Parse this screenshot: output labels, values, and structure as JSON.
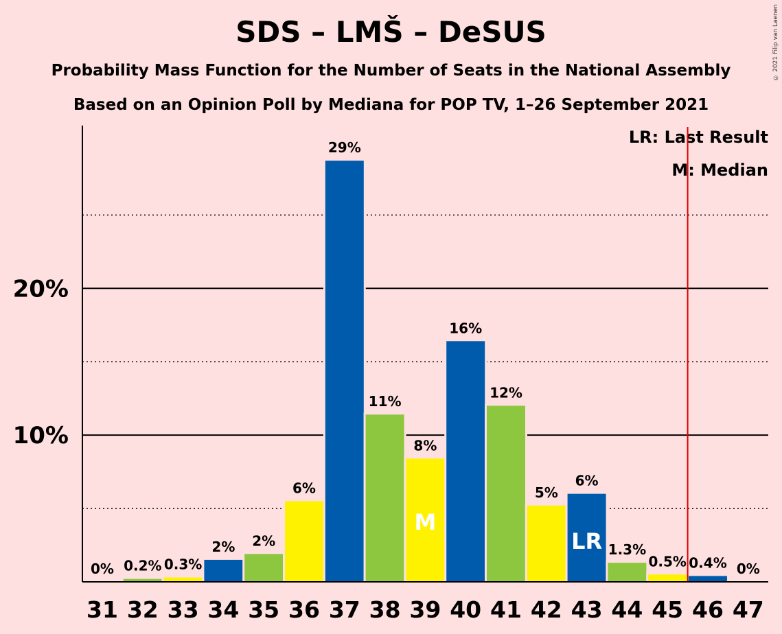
{
  "title": "SDS – LMŠ – DeSUS",
  "subtitle1": "Probability Mass Function for the Number of Seats in the National Assembly",
  "subtitle2": "Based on an Opinion Poll by Mediana for POP TV, 1–26 September 2021",
  "copyright": "© 2021 Filip van Laenen",
  "legend": {
    "lr": "LR: Last Result",
    "m": "M: Median"
  },
  "colors": {
    "background": "#FFE0E0",
    "blue": "#005BAC",
    "green": "#8DC63F",
    "yellow": "#FFF200",
    "last_result_line": "#E00000"
  },
  "chart_data": {
    "type": "bar",
    "categories": [
      "31",
      "32",
      "33",
      "34",
      "35",
      "36",
      "37",
      "38",
      "39",
      "40",
      "41",
      "42",
      "43",
      "44",
      "45",
      "46",
      "47"
    ],
    "values": [
      0,
      0.2,
      0.3,
      1.5,
      1.9,
      5.5,
      28.7,
      11.4,
      8.4,
      16.4,
      12.0,
      5.2,
      6.0,
      1.3,
      0.5,
      0.4,
      0
    ],
    "value_labels": [
      "0%",
      "0.2%",
      "0.3%",
      "2%",
      "2%",
      "6%",
      "29%",
      "11%",
      "8%",
      "16%",
      "12%",
      "5%",
      "6%",
      "1.3%",
      "0.5%",
      "0.4%",
      "0%"
    ],
    "bar_colors": [
      "#8DC63F",
      "#8DC63F",
      "#FFF200",
      "#005BAC",
      "#8DC63F",
      "#FFF200",
      "#005BAC",
      "#8DC63F",
      "#FFF200",
      "#005BAC",
      "#8DC63F",
      "#FFF200",
      "#005BAC",
      "#8DC63F",
      "#FFF200",
      "#005BAC",
      "#8DC63F"
    ],
    "ylim": [
      0,
      31
    ],
    "yticks": [
      {
        "value": 10,
        "label": "10%"
      },
      {
        "value": 20,
        "label": "20%"
      }
    ],
    "minor_gridlines": [
      5,
      15,
      25
    ],
    "median": {
      "category": "39",
      "label": "M"
    },
    "last_result": {
      "category": "43",
      "label": "LR"
    },
    "majority_line_after": "45",
    "legend_position": "top-right"
  }
}
